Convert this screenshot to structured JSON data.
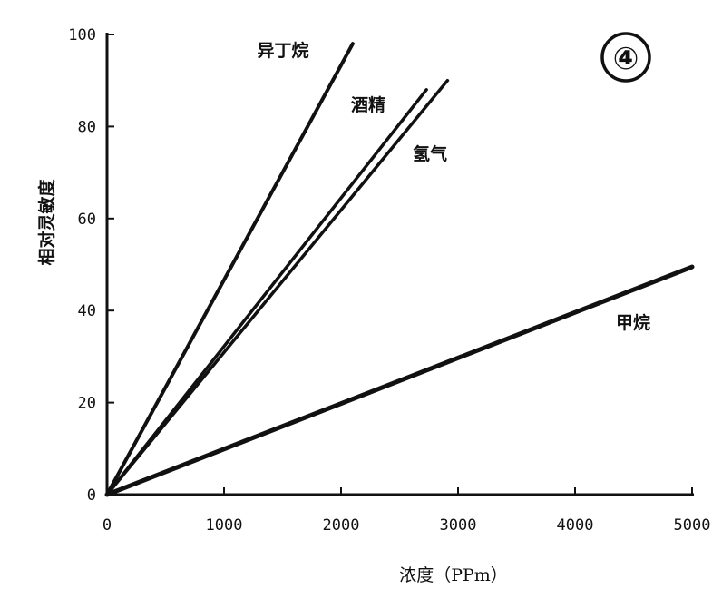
{
  "chart_data": {
    "type": "line",
    "panel_label": "④",
    "xlabel": "浓度（PPm）",
    "ylabel": "相对灵敏度",
    "xlim": [
      0,
      5000
    ],
    "ylim": [
      0,
      100
    ],
    "x_ticks": [
      0,
      1000,
      2000,
      3000,
      4000,
      5000
    ],
    "y_ticks": [
      0,
      20,
      40,
      60,
      80,
      100
    ],
    "grid": false,
    "series": [
      {
        "name": "异丁烷",
        "x": [
          0,
          2100
        ],
        "y": [
          0,
          98
        ]
      },
      {
        "name": "酒精",
        "x": [
          0,
          2730
        ],
        "y": [
          0,
          88
        ]
      },
      {
        "name": "氢气",
        "x": [
          0,
          2910
        ],
        "y": [
          0,
          90
        ]
      },
      {
        "name": "甲烷",
        "x": [
          0,
          5000
        ],
        "y": [
          0,
          49.5
        ]
      }
    ]
  }
}
